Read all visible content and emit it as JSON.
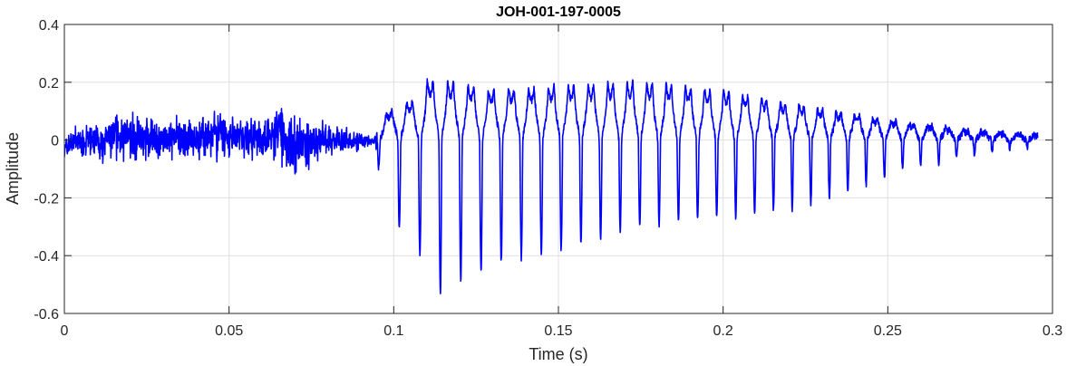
{
  "chart_data": {
    "type": "line",
    "title": "JOH-001-197-0005",
    "xlabel": "Time (s)",
    "ylabel": "Amplitude",
    "xlim": [
      0,
      0.3
    ],
    "ylim": [
      -0.6,
      0.4
    ],
    "xticks": [
      0,
      0.05,
      0.1,
      0.15,
      0.2,
      0.25,
      0.3
    ],
    "xtick_labels": [
      "0",
      "0.05",
      "0.1",
      "0.15",
      "0.2",
      "0.25",
      "0.3"
    ],
    "yticks": [
      -0.6,
      -0.4,
      -0.2,
      0,
      0.2,
      0.4
    ],
    "ytick_labels": [
      "-0.6",
      "-0.4",
      "-0.2",
      "0",
      "0.2",
      "0.4"
    ],
    "grid": true,
    "line_color": "#0000ff",
    "series": [
      {
        "x_start": 0,
        "x_end": 0.2955,
        "envelope": {
          "t": [
            0.0,
            0.003,
            0.01,
            0.015,
            0.03,
            0.045,
            0.06,
            0.066,
            0.07,
            0.073,
            0.08,
            0.09,
            0.094,
            0.096,
            0.1,
            0.104,
            0.108,
            0.11,
            0.116,
            0.12,
            0.13,
            0.15,
            0.165,
            0.17,
            0.18,
            0.2,
            0.225,
            0.245,
            0.255,
            0.265,
            0.275,
            0.285,
            0.2955
          ],
          "max": [
            0.02,
            0.07,
            0.08,
            0.13,
            0.1,
            0.12,
            0.1,
            0.17,
            0.18,
            0.12,
            0.08,
            0.04,
            0.02,
            0.09,
            0.15,
            0.17,
            0.18,
            0.27,
            0.26,
            0.25,
            0.22,
            0.24,
            0.25,
            0.26,
            0.25,
            0.22,
            0.15,
            0.1,
            0.08,
            0.06,
            0.04,
            0.03,
            0.02
          ],
          "min": [
            -0.09,
            -0.07,
            -0.1,
            -0.1,
            -0.1,
            -0.1,
            -0.09,
            -0.13,
            -0.21,
            -0.14,
            -0.07,
            -0.05,
            -0.03,
            -0.12,
            -0.27,
            -0.35,
            -0.4,
            -0.52,
            -0.53,
            -0.48,
            -0.43,
            -0.38,
            -0.33,
            -0.31,
            -0.29,
            -0.27,
            -0.23,
            -0.15,
            -0.1,
            -0.08,
            -0.05,
            -0.03,
            -0.02
          ]
        },
        "periodic_onset": 0.095,
        "period_s": [
          0.0063,
          0.0053
        ]
      }
    ]
  }
}
